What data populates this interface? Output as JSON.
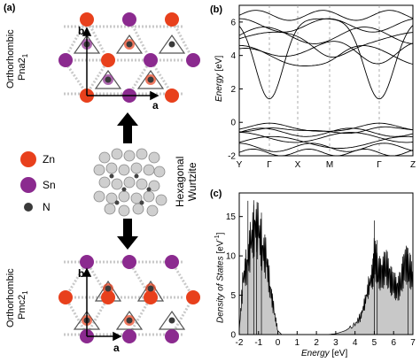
{
  "panel_a": {
    "label": "(a)",
    "top_structure": {
      "name_line1": "Orthorhombic",
      "name_line2_base": "Pna2",
      "name_line2_sub": "1",
      "axis_a": "a",
      "axis_b": "b"
    },
    "bottom_structure": {
      "name_line1": "Orthorhombic",
      "name_line2_base": "Pmc2",
      "name_line2_sub": "1",
      "axis_a": "a",
      "axis_b": "b"
    },
    "middle_structure": {
      "line1": "Hexagonal",
      "line2": "Wurtzite"
    },
    "legend": [
      {
        "label": "Zn",
        "color": "#e8401c"
      },
      {
        "label": "Sn",
        "color": "#8b2a8f"
      },
      {
        "label": "N",
        "color": "#3a3a3a"
      }
    ],
    "colors": {
      "zn": "#e8401c",
      "sn": "#8b2a8f",
      "n": "#3a3a3a",
      "arrow": "#000000"
    }
  },
  "panel_b": {
    "label": "(b)",
    "ylabel": "Energy [eV]",
    "ylabel_word": "Energy",
    "ylabel_unit": " [eV]",
    "kpoints": [
      "Y",
      "Γ",
      "X",
      "M",
      "Γ",
      "Z"
    ],
    "yticks": [
      "-2",
      "0",
      "2",
      "4",
      "6"
    ],
    "ylim": [
      -2,
      7
    ]
  },
  "panel_c": {
    "label": "(c)",
    "ylabel_word": "Density of States",
    "ylabel_unit": " [eV",
    "ylabel_sup": "-1",
    "ylabel_end": "]",
    "xlabel_word": "Energy",
    "xlabel_unit": " [eV]",
    "xticks": [
      "-2",
      "-1",
      "0",
      "1",
      "2",
      "3",
      "4",
      "5",
      "6",
      "7"
    ],
    "yticks": [
      "0",
      "5",
      "10",
      "15"
    ],
    "xlim": [
      -2,
      7
    ],
    "ylim": [
      0,
      18
    ],
    "fill_color": "#c8c8c8"
  },
  "chart_data": [
    {
      "type": "line",
      "panel": "b",
      "x_labels": [
        "Y",
        "Γ",
        "X",
        "M",
        "Γ",
        "Z"
      ],
      "ylabel": "Energy [eV]",
      "ylim": [
        -2,
        7
      ],
      "conduction_band_minimum": 1.4,
      "valence_band_maximum": 0.0
    },
    {
      "type": "area",
      "panel": "c",
      "xlabel": "Energy [eV]",
      "ylabel": "Density of States [eV-1]",
      "xlim": [
        -2,
        7
      ],
      "ylim": [
        0,
        18
      ],
      "x": [
        -2.0,
        -1.8,
        -1.6,
        -1.4,
        -1.2,
        -1.0,
        -0.8,
        -0.6,
        -0.4,
        -0.2,
        0.0,
        0.2,
        1.0,
        2.0,
        2.5,
        3.0,
        3.5,
        4.0,
        4.3,
        4.5,
        4.7,
        4.9,
        5.0,
        5.2,
        5.4,
        5.6,
        5.8,
        6.0,
        6.2,
        6.4,
        6.6,
        6.8,
        7.0
      ],
      "y": [
        0.5,
        7.0,
        9.0,
        11.5,
        14.0,
        13.0,
        11.0,
        9.5,
        6.0,
        3.0,
        0.5,
        0.0,
        0.0,
        0.0,
        0.0,
        0.1,
        0.5,
        1.3,
        2.3,
        4.0,
        6.0,
        7.5,
        10.0,
        8.0,
        7.5,
        9.0,
        7.0,
        6.5,
        5.5,
        7.0,
        9.0,
        8.5,
        7.0
      ]
    }
  ]
}
